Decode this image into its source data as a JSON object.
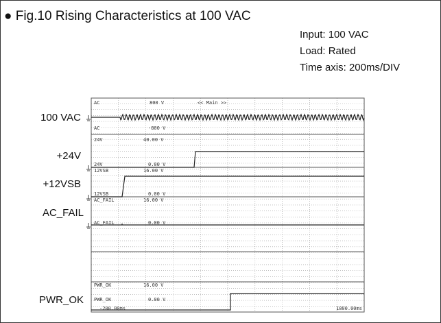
{
  "title": "● Fig.10  Rising Characteristics at 100 VAC",
  "conditions": [
    "Input: 100 VAC",
    "Load: Rated",
    "Time axis: 200ms/DIV"
  ],
  "channel_labels": [
    "100 VAC",
    "+24V",
    "+12VSB",
    "AC_FAIL",
    "PWR_OK"
  ],
  "scope_labels": [
    "AC",
    "800 V",
    "<< Main >>",
    "AC",
    "-800 V",
    "24V",
    "40.00 V",
    "24V",
    "0.00 V",
    "12VSB",
    "16.00 V",
    "12VSB",
    "0.00 V",
    "AC_FAIL",
    "16.00 V",
    "AC_FAIL",
    "0.00 V",
    "PWR_OK",
    "16.00 V",
    "PWR_OK",
    "0.00 V",
    "-200.00ms",
    "1800.00ms"
  ]
}
